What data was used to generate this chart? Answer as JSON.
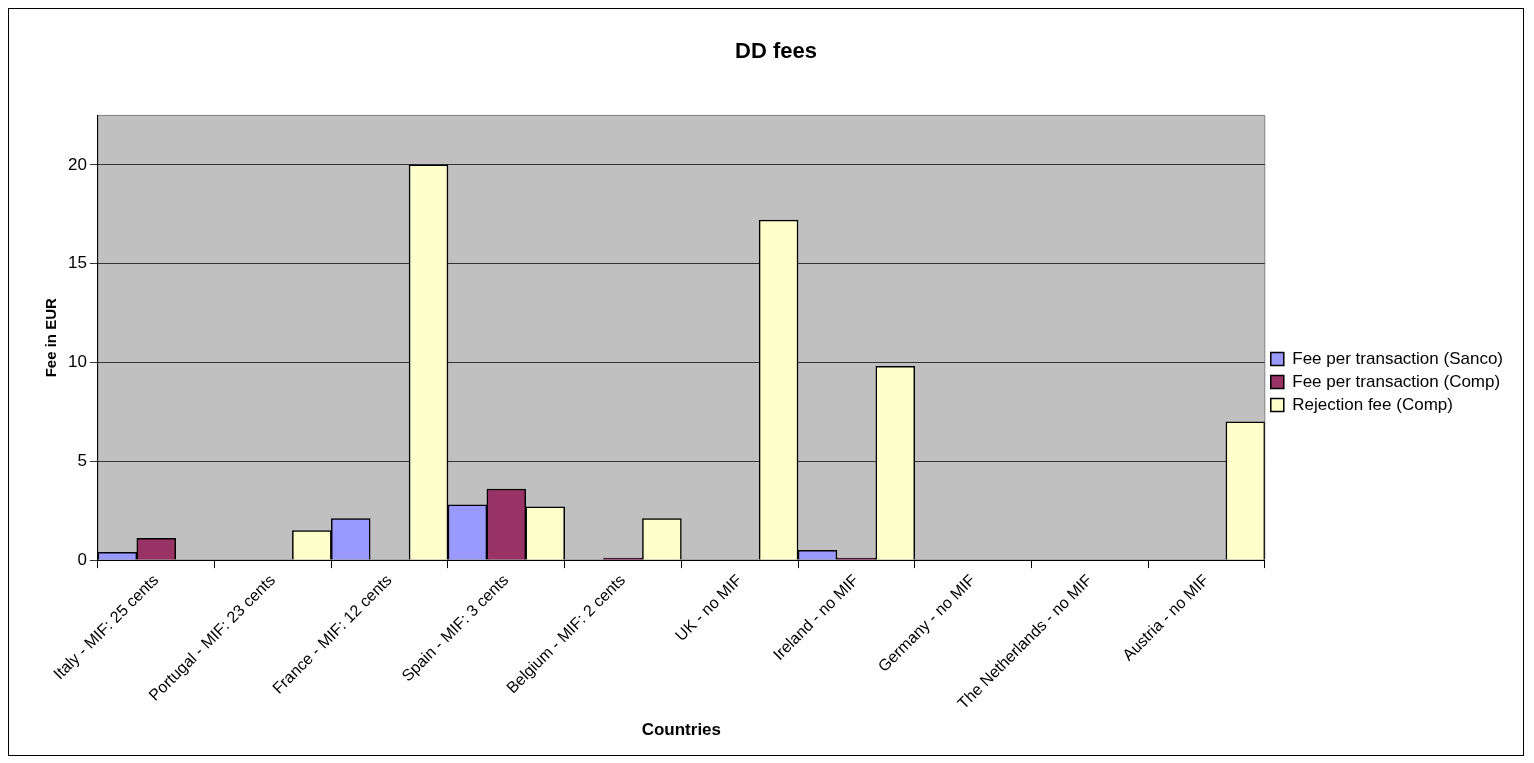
{
  "chart_data": {
    "type": "bar",
    "title": "DD fees",
    "xlabel": "Countries",
    "ylabel": "Fee in EUR",
    "categories": [
      "Italy - MIF: 25 cents",
      "Portugal - MIF: 23 cents",
      "France - MIF: 12 cents",
      "Spain - MIF: 3 cents",
      "Belgium - MIF: 2 cents",
      "UK - no MIF",
      "Ireland - no MIF",
      "Germany - no MIF",
      "The Netherlands - no MIF",
      "Austria - no MIF"
    ],
    "series": [
      {
        "name": "Fee per transaction (Sanco)",
        "color": "#9999ff",
        "values": [
          0.4,
          null,
          2.1,
          2.8,
          null,
          null,
          0.5,
          null,
          null,
          null
        ]
      },
      {
        "name": "Fee per transaction (Comp)",
        "color": "#993366",
        "values": [
          1.1,
          null,
          null,
          3.6,
          0.1,
          null,
          0.1,
          null,
          null,
          null
        ]
      },
      {
        "name": "Rejection fee (Comp)",
        "color": "#ffffcc",
        "values": [
          null,
          1.5,
          20,
          2.7,
          2.1,
          17.2,
          9.8,
          null,
          null,
          7.0
        ]
      }
    ],
    "ylim": [
      0,
      22.5
    ],
    "yticks": [
      0,
      5,
      10,
      15,
      20
    ],
    "grid": "y",
    "legend": "right"
  }
}
